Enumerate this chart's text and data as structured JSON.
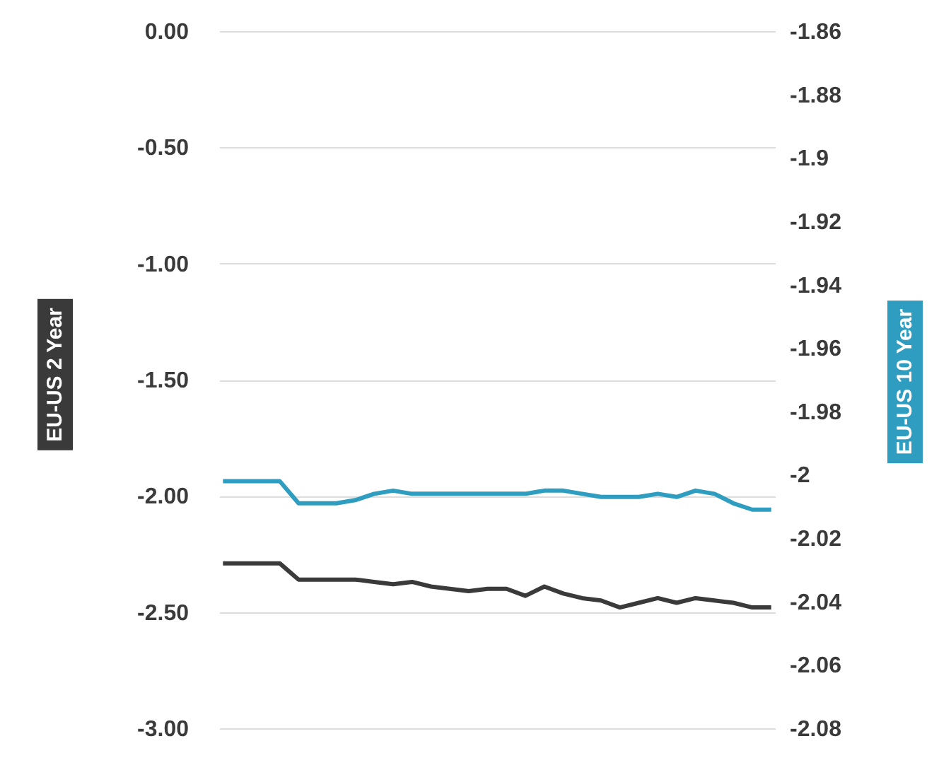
{
  "chart_data": {
    "type": "line",
    "ylabel": "EU-US 2 Year",
    "y2label": "EU-US 10 Year",
    "categories": [
      null,
      null,
      null,
      null,
      null,
      null,
      null,
      null,
      null,
      null,
      null,
      null,
      null,
      null,
      null,
      null,
      null,
      null,
      null,
      null,
      null,
      null,
      null,
      null,
      null,
      null,
      null,
      null,
      null,
      null
    ],
    "series": [
      {
        "color": "#3a3a3a",
        "values": [
          -2.29,
          -2.29,
          -2.29,
          -2.29,
          -2.36,
          -2.36,
          -2.36,
          -2.36,
          -2.37,
          -2.38,
          -2.37,
          -2.39,
          -2.4,
          -2.41,
          -2.4,
          -2.4,
          -2.43,
          -2.39,
          -2.42,
          -2.44,
          -2.45,
          -2.48,
          -2.46,
          -2.44,
          -2.46,
          -2.44,
          -2.45,
          -2.46,
          -2.48,
          -2.48
        ]
      },
      {
        "color": "#2e9dc0",
        "axis": "y2",
        "values": [
          -2.002,
          -2.002,
          -2.002,
          -2.002,
          -2.009,
          -2.009,
          -2.009,
          -2.008,
          -2.006,
          -2.005,
          -2.006,
          -2.006,
          -2.006,
          -2.006,
          -2.006,
          -2.006,
          -2.006,
          -2.005,
          -2.005,
          -2.006,
          -2.007,
          -2.007,
          -2.007,
          -2.006,
          -2.007,
          -2.005,
          -2.006,
          -2.009,
          -2.011,
          -2.011
        ]
      }
    ],
    "ylim": [
      -3,
      0
    ],
    "yticks": [
      {
        "value": 0,
        "label": "0.00"
      },
      {
        "value": -0.5,
        "label": "-0.50"
      },
      {
        "value": -1,
        "label": "-1.00"
      },
      {
        "value": -1.5,
        "label": "-1.50"
      },
      {
        "value": -2,
        "label": "-2.00"
      },
      {
        "value": -2.5,
        "label": "-2.50"
      },
      {
        "value": -3,
        "label": "-3.00"
      }
    ],
    "y2lim": [
      -2.08,
      -1.86
    ],
    "y2ticks": [
      -1.86,
      -1.88,
      -1.9,
      -1.92,
      -1.94,
      -1.96,
      -1.98,
      -2,
      -2.02,
      -2.04,
      -2.06,
      -2.08
    ],
    "grid": "y",
    "tick_labels": "y"
  }
}
